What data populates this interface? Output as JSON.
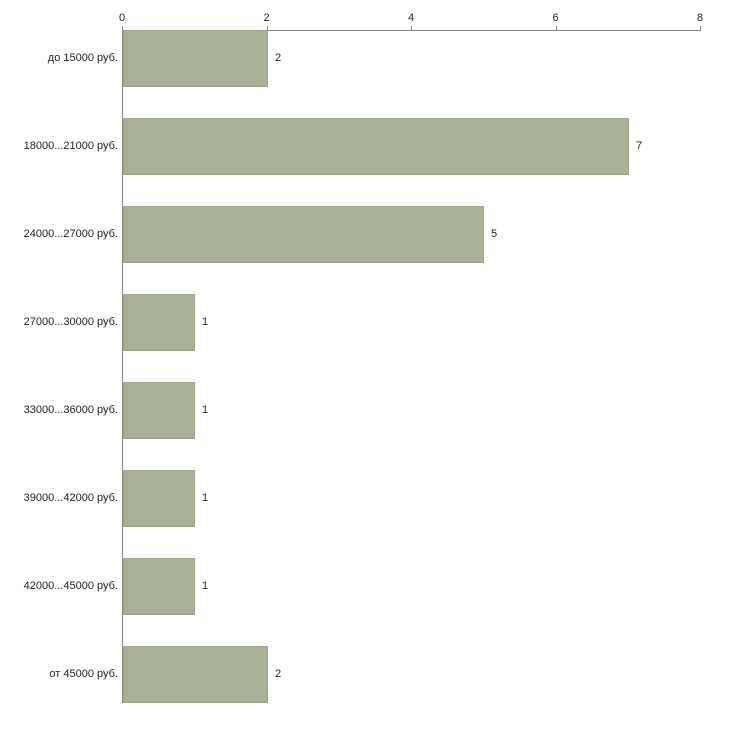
{
  "chart_data": {
    "type": "bar",
    "orientation": "horizontal",
    "title": "",
    "xlabel": "",
    "ylabel": "",
    "categories": [
      "до 15000 руб.",
      "18000...21000 руб.",
      "24000...27000 руб.",
      "27000...30000 руб.",
      "33000...36000 руб.",
      "39000...42000 руб.",
      "42000...45000 руб.",
      "от 45000 руб."
    ],
    "values": [
      2,
      7,
      5,
      1,
      1,
      1,
      1,
      2
    ],
    "value_labels": [
      "2",
      "7",
      "5",
      "1",
      "1",
      "1",
      "1",
      "2"
    ],
    "xlim": [
      0,
      8
    ],
    "x_ticks": [
      "0",
      "2",
      "4",
      "6",
      "8"
    ],
    "x_tick_values": [
      0,
      2,
      4,
      6,
      8
    ],
    "grid": false,
    "legend": false,
    "axis_position": "top",
    "colors": {
      "bar_fill": "#a9b294",
      "bar_border": "#9aa486",
      "axis": "#848484",
      "text": "#1f1f1f",
      "background": "#ffffff"
    }
  }
}
